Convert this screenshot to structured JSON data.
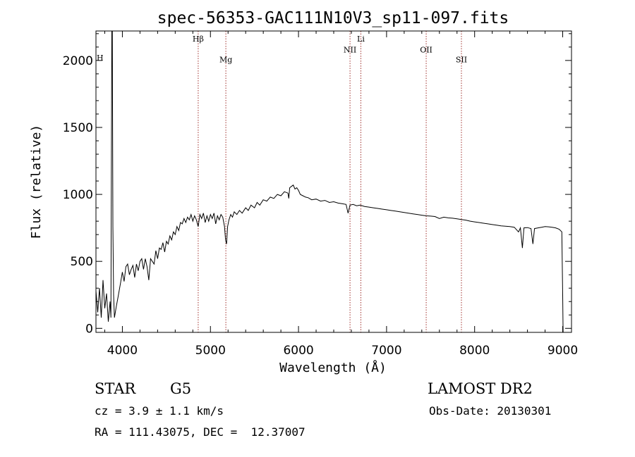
{
  "chart_data": {
    "type": "line",
    "title": "spec-56353-GAC111N10V3_sp11-097.fits",
    "xlabel": "Wavelength (Å)",
    "ylabel": "Flux (relative)",
    "xlim": [
      3700,
      9100
    ],
    "ylim": [
      -30,
      2220
    ],
    "x_ticks": [
      4000,
      5000,
      6000,
      7000,
      8000,
      9000
    ],
    "y_ticks": [
      0,
      500,
      1000,
      1500,
      2000
    ],
    "series": [
      {
        "color": "#000000",
        "points": [
          [
            3700,
            280
          ],
          [
            3720,
            120
          ],
          [
            3740,
            300
          ],
          [
            3760,
            80
          ],
          [
            3780,
            360
          ],
          [
            3800,
            150
          ],
          [
            3820,
            260
          ],
          [
            3840,
            50
          ],
          [
            3860,
            200
          ],
          [
            3870,
            80
          ],
          [
            3880,
            2300
          ],
          [
            3886,
            2300
          ],
          [
            3892,
            760
          ],
          [
            3900,
            250
          ],
          [
            3910,
            80
          ],
          [
            3930,
            160
          ],
          [
            3950,
            230
          ],
          [
            3980,
            340
          ],
          [
            4000,
            420
          ],
          [
            4020,
            350
          ],
          [
            4040,
            460
          ],
          [
            4060,
            480
          ],
          [
            4080,
            400
          ],
          [
            4100,
            440
          ],
          [
            4120,
            470
          ],
          [
            4140,
            380
          ],
          [
            4160,
            480
          ],
          [
            4180,
            430
          ],
          [
            4200,
            500
          ],
          [
            4220,
            520
          ],
          [
            4240,
            440
          ],
          [
            4260,
            520
          ],
          [
            4280,
            460
          ],
          [
            4300,
            360
          ],
          [
            4320,
            520
          ],
          [
            4340,
            500
          ],
          [
            4360,
            480
          ],
          [
            4380,
            580
          ],
          [
            4400,
            520
          ],
          [
            4420,
            600
          ],
          [
            4440,
            590
          ],
          [
            4460,
            640
          ],
          [
            4480,
            570
          ],
          [
            4500,
            650
          ],
          [
            4520,
            630
          ],
          [
            4540,
            690
          ],
          [
            4560,
            660
          ],
          [
            4580,
            720
          ],
          [
            4600,
            700
          ],
          [
            4620,
            760
          ],
          [
            4640,
            730
          ],
          [
            4660,
            790
          ],
          [
            4680,
            780
          ],
          [
            4700,
            820
          ],
          [
            4720,
            790
          ],
          [
            4740,
            830
          ],
          [
            4760,
            810
          ],
          [
            4780,
            850
          ],
          [
            4800,
            800
          ],
          [
            4820,
            840
          ],
          [
            4840,
            810
          ],
          [
            4861,
            760
          ],
          [
            4880,
            850
          ],
          [
            4900,
            820
          ],
          [
            4920,
            860
          ],
          [
            4940,
            790
          ],
          [
            4960,
            840
          ],
          [
            4980,
            800
          ],
          [
            5000,
            850
          ],
          [
            5020,
            820
          ],
          [
            5040,
            860
          ],
          [
            5060,
            780
          ],
          [
            5080,
            840
          ],
          [
            5100,
            810
          ],
          [
            5120,
            850
          ],
          [
            5140,
            830
          ],
          [
            5160,
            760
          ],
          [
            5172,
            660
          ],
          [
            5183,
            630
          ],
          [
            5195,
            760
          ],
          [
            5210,
            810
          ],
          [
            5230,
            850
          ],
          [
            5250,
            830
          ],
          [
            5270,
            870
          ],
          [
            5300,
            850
          ],
          [
            5330,
            880
          ],
          [
            5360,
            860
          ],
          [
            5400,
            900
          ],
          [
            5430,
            880
          ],
          [
            5460,
            920
          ],
          [
            5500,
            900
          ],
          [
            5530,
            940
          ],
          [
            5560,
            920
          ],
          [
            5600,
            960
          ],
          [
            5640,
            950
          ],
          [
            5680,
            980
          ],
          [
            5720,
            970
          ],
          [
            5760,
            1000
          ],
          [
            5800,
            990
          ],
          [
            5840,
            1020
          ],
          [
            5880,
            1010
          ],
          [
            5890,
            970
          ],
          [
            5900,
            1050
          ],
          [
            5920,
            1060
          ],
          [
            5940,
            1070
          ],
          [
            5960,
            1040
          ],
          [
            5980,
            1050
          ],
          [
            6000,
            1030
          ],
          [
            6020,
            1000
          ],
          [
            6050,
            990
          ],
          [
            6080,
            980
          ],
          [
            6110,
            975
          ],
          [
            6150,
            960
          ],
          [
            6200,
            965
          ],
          [
            6250,
            950
          ],
          [
            6300,
            955
          ],
          [
            6350,
            940
          ],
          [
            6400,
            945
          ],
          [
            6450,
            935
          ],
          [
            6500,
            930
          ],
          [
            6540,
            925
          ],
          [
            6563,
            860
          ],
          [
            6585,
            920
          ],
          [
            6620,
            925
          ],
          [
            6660,
            915
          ],
          [
            6700,
            920
          ],
          [
            6750,
            910
          ],
          [
            6800,
            905
          ],
          [
            6850,
            900
          ],
          [
            6900,
            895
          ],
          [
            6950,
            890
          ],
          [
            7000,
            885
          ],
          [
            7050,
            880
          ],
          [
            7100,
            875
          ],
          [
            7150,
            870
          ],
          [
            7200,
            865
          ],
          [
            7250,
            860
          ],
          [
            7300,
            855
          ],
          [
            7350,
            850
          ],
          [
            7400,
            845
          ],
          [
            7450,
            840
          ],
          [
            7500,
            838
          ],
          [
            7550,
            835
          ],
          [
            7600,
            820
          ],
          [
            7650,
            830
          ],
          [
            7700,
            825
          ],
          [
            7750,
            822
          ],
          [
            7800,
            818
          ],
          [
            7850,
            812
          ],
          [
            7900,
            808
          ],
          [
            7950,
            800
          ],
          [
            8000,
            795
          ],
          [
            8050,
            790
          ],
          [
            8100,
            785
          ],
          [
            8150,
            780
          ],
          [
            8200,
            775
          ],
          [
            8250,
            770
          ],
          [
            8300,
            765
          ],
          [
            8350,
            762
          ],
          [
            8400,
            760
          ],
          [
            8450,
            755
          ],
          [
            8498,
            720
          ],
          [
            8520,
            750
          ],
          [
            8542,
            600
          ],
          [
            8560,
            750
          ],
          [
            8600,
            752
          ],
          [
            8640,
            745
          ],
          [
            8662,
            630
          ],
          [
            8680,
            745
          ],
          [
            8720,
            750
          ],
          [
            8760,
            755
          ],
          [
            8800,
            760
          ],
          [
            8840,
            758
          ],
          [
            8880,
            755
          ],
          [
            8920,
            750
          ],
          [
            8960,
            740
          ],
          [
            8990,
            720
          ],
          [
            9000,
            250
          ],
          [
            9005,
            -30
          ]
        ]
      }
    ],
    "lines": [
      {
        "name": "CaII H",
        "label": "H",
        "x": 3700,
        "label_y": 2000
      },
      {
        "name": "H-beta",
        "label": "Hβ",
        "x": 4861,
        "label_y": 2140
      },
      {
        "name": "Mg",
        "label": "Mg",
        "x": 5175,
        "label_y": 1985
      },
      {
        "name": "NII",
        "label": "NII",
        "x": 6585,
        "label_y": 2060
      },
      {
        "name": "Li",
        "label": "Li",
        "x": 6708,
        "label_y": 2140
      },
      {
        "name": "OII",
        "label": "OII",
        "x": 7450,
        "label_y": 2060
      },
      {
        "name": "SII",
        "label": "SII",
        "x": 7850,
        "label_y": 1985
      }
    ]
  },
  "info": {
    "object_type": "STAR",
    "subclass": "G5",
    "survey": "LAMOST DR2",
    "redshift": "cz = 3.9 ± 1.1 km/s",
    "obs_date": "Obs-Date: 20130301",
    "coords": "RA = 111.43075, DEC =  12.37007"
  },
  "colors": {
    "line_markers": "#a0302c",
    "spectrum": "#000000"
  }
}
